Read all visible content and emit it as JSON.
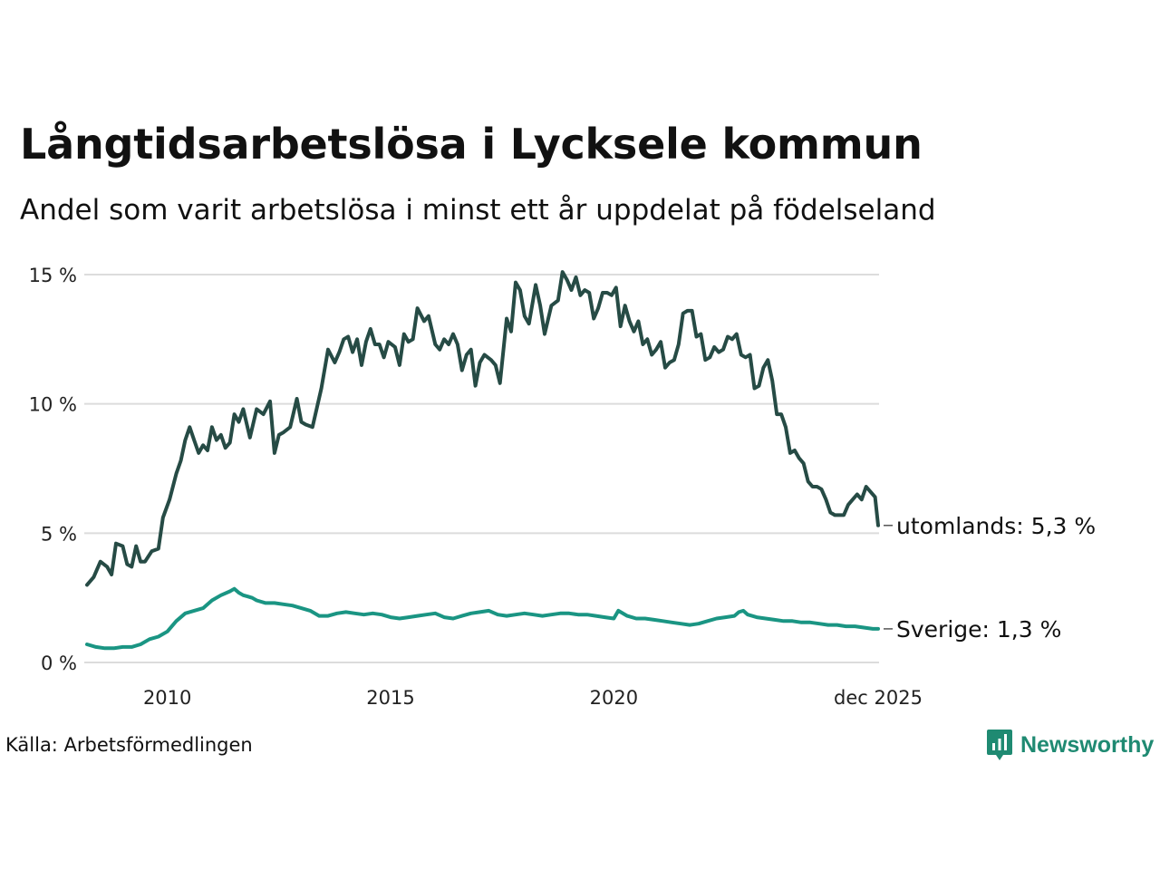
{
  "title": "Långtidsarbetslösa i Lycksele kommun",
  "subtitle": "Andel som varit arbetslösa i minst ett år uppdelat på födelseland",
  "source": "Källa: Arbetsförmedlingen",
  "brand": "Newsworthy",
  "colors": {
    "dark": "#264b45",
    "teal": "#1a9583",
    "grid": "#dcdcdc",
    "brand": "#1f8a72"
  },
  "chart_data": {
    "type": "line",
    "title": "Långtidsarbetslösa i Lycksele kommun",
    "xlabel": "",
    "ylabel": "",
    "xlim": [
      2008.2,
      2025.92
    ],
    "ylim": [
      0,
      15
    ],
    "y_ticks": [
      0,
      5,
      10,
      15
    ],
    "y_tick_labels": [
      "0 %",
      "5 %",
      "10 %",
      "15 %"
    ],
    "x_ticks": [
      2010,
      2015,
      2020,
      2025.92
    ],
    "x_tick_labels": [
      "2010",
      "2015",
      "2020",
      "dec 2025"
    ],
    "series": [
      {
        "name": "utomlands",
        "label": "utomlands: 5,3 %",
        "color": "#264b45",
        "points": [
          [
            2008.2,
            3.0
          ],
          [
            2008.35,
            3.3
          ],
          [
            2008.5,
            3.9
          ],
          [
            2008.65,
            3.7
          ],
          [
            2008.75,
            3.4
          ],
          [
            2008.85,
            4.6
          ],
          [
            2009.0,
            4.5
          ],
          [
            2009.1,
            3.8
          ],
          [
            2009.2,
            3.7
          ],
          [
            2009.3,
            4.5
          ],
          [
            2009.4,
            3.9
          ],
          [
            2009.5,
            3.9
          ],
          [
            2009.65,
            4.3
          ],
          [
            2009.8,
            4.4
          ],
          [
            2009.9,
            5.6
          ],
          [
            2010.05,
            6.3
          ],
          [
            2010.2,
            7.3
          ],
          [
            2010.3,
            7.8
          ],
          [
            2010.4,
            8.6
          ],
          [
            2010.5,
            9.1
          ],
          [
            2010.6,
            8.6
          ],
          [
            2010.7,
            8.1
          ],
          [
            2010.8,
            8.4
          ],
          [
            2010.9,
            8.2
          ],
          [
            2011.0,
            9.1
          ],
          [
            2011.1,
            8.6
          ],
          [
            2011.2,
            8.8
          ],
          [
            2011.3,
            8.3
          ],
          [
            2011.4,
            8.5
          ],
          [
            2011.5,
            9.6
          ],
          [
            2011.6,
            9.3
          ],
          [
            2011.7,
            9.8
          ],
          [
            2011.85,
            8.7
          ],
          [
            2012.0,
            9.8
          ],
          [
            2012.15,
            9.6
          ],
          [
            2012.3,
            10.1
          ],
          [
            2012.4,
            8.1
          ],
          [
            2012.5,
            8.8
          ],
          [
            2012.6,
            8.9
          ],
          [
            2012.75,
            9.1
          ],
          [
            2012.9,
            10.2
          ],
          [
            2013.0,
            9.3
          ],
          [
            2013.1,
            9.2
          ],
          [
            2013.25,
            9.1
          ],
          [
            2013.45,
            10.6
          ],
          [
            2013.6,
            12.1
          ],
          [
            2013.75,
            11.6
          ],
          [
            2013.85,
            12.0
          ],
          [
            2013.95,
            12.5
          ],
          [
            2014.05,
            12.6
          ],
          [
            2014.15,
            12.0
          ],
          [
            2014.25,
            12.5
          ],
          [
            2014.35,
            11.5
          ],
          [
            2014.45,
            12.4
          ],
          [
            2014.55,
            12.9
          ],
          [
            2014.65,
            12.3
          ],
          [
            2014.75,
            12.3
          ],
          [
            2014.85,
            11.8
          ],
          [
            2014.95,
            12.4
          ],
          [
            2015.1,
            12.2
          ],
          [
            2015.2,
            11.5
          ],
          [
            2015.3,
            12.7
          ],
          [
            2015.4,
            12.4
          ],
          [
            2015.5,
            12.5
          ],
          [
            2015.6,
            13.7
          ],
          [
            2015.75,
            13.2
          ],
          [
            2015.85,
            13.4
          ],
          [
            2016.0,
            12.3
          ],
          [
            2016.1,
            12.1
          ],
          [
            2016.2,
            12.5
          ],
          [
            2016.3,
            12.3
          ],
          [
            2016.4,
            12.7
          ],
          [
            2016.5,
            12.3
          ],
          [
            2016.6,
            11.3
          ],
          [
            2016.7,
            11.9
          ],
          [
            2016.8,
            12.1
          ],
          [
            2016.9,
            10.7
          ],
          [
            2017.0,
            11.6
          ],
          [
            2017.1,
            11.9
          ],
          [
            2017.25,
            11.7
          ],
          [
            2017.35,
            11.5
          ],
          [
            2017.45,
            10.8
          ],
          [
            2017.6,
            13.3
          ],
          [
            2017.7,
            12.8
          ],
          [
            2017.8,
            14.7
          ],
          [
            2017.9,
            14.4
          ],
          [
            2018.0,
            13.4
          ],
          [
            2018.1,
            13.1
          ],
          [
            2018.25,
            14.6
          ],
          [
            2018.35,
            13.8
          ],
          [
            2018.45,
            12.7
          ],
          [
            2018.6,
            13.8
          ],
          [
            2018.75,
            14.0
          ],
          [
            2018.85,
            15.1
          ],
          [
            2018.95,
            14.8
          ],
          [
            2019.05,
            14.4
          ],
          [
            2019.15,
            14.9
          ],
          [
            2019.25,
            14.2
          ],
          [
            2019.35,
            14.4
          ],
          [
            2019.45,
            14.3
          ],
          [
            2019.55,
            13.3
          ],
          [
            2019.65,
            13.7
          ],
          [
            2019.75,
            14.3
          ],
          [
            2019.85,
            14.3
          ],
          [
            2019.95,
            14.2
          ],
          [
            2020.05,
            14.5
          ],
          [
            2020.15,
            13.0
          ],
          [
            2020.25,
            13.8
          ],
          [
            2020.35,
            13.2
          ],
          [
            2020.45,
            12.8
          ],
          [
            2020.55,
            13.2
          ],
          [
            2020.65,
            12.3
          ],
          [
            2020.75,
            12.5
          ],
          [
            2020.85,
            11.9
          ],
          [
            2020.95,
            12.1
          ],
          [
            2021.05,
            12.4
          ],
          [
            2021.15,
            11.4
          ],
          [
            2021.25,
            11.6
          ],
          [
            2021.35,
            11.7
          ],
          [
            2021.45,
            12.3
          ],
          [
            2021.55,
            13.5
          ],
          [
            2021.65,
            13.6
          ],
          [
            2021.75,
            13.6
          ],
          [
            2021.85,
            12.6
          ],
          [
            2021.95,
            12.7
          ],
          [
            2022.05,
            11.7
          ],
          [
            2022.15,
            11.8
          ],
          [
            2022.25,
            12.2
          ],
          [
            2022.35,
            12.0
          ],
          [
            2022.45,
            12.1
          ],
          [
            2022.55,
            12.6
          ],
          [
            2022.65,
            12.5
          ],
          [
            2022.75,
            12.7
          ],
          [
            2022.85,
            11.9
          ],
          [
            2022.95,
            11.8
          ],
          [
            2023.05,
            11.9
          ],
          [
            2023.15,
            10.6
          ],
          [
            2023.25,
            10.7
          ],
          [
            2023.35,
            11.4
          ],
          [
            2023.45,
            11.7
          ],
          [
            2023.55,
            10.9
          ],
          [
            2023.65,
            9.6
          ],
          [
            2023.75,
            9.6
          ],
          [
            2023.85,
            9.1
          ],
          [
            2023.95,
            8.1
          ],
          [
            2024.05,
            8.2
          ],
          [
            2024.15,
            7.9
          ],
          [
            2024.25,
            7.7
          ],
          [
            2024.35,
            7.0
          ],
          [
            2024.45,
            6.8
          ],
          [
            2024.55,
            6.8
          ],
          [
            2024.65,
            6.7
          ],
          [
            2024.75,
            6.3
          ],
          [
            2024.85,
            5.8
          ],
          [
            2024.95,
            5.7
          ],
          [
            2025.05,
            5.7
          ],
          [
            2025.15,
            5.7
          ],
          [
            2025.25,
            6.1
          ],
          [
            2025.35,
            6.3
          ],
          [
            2025.45,
            6.5
          ],
          [
            2025.55,
            6.3
          ],
          [
            2025.65,
            6.8
          ],
          [
            2025.75,
            6.6
          ],
          [
            2025.85,
            6.4
          ],
          [
            2025.92,
            5.3
          ]
        ]
      },
      {
        "name": "Sverige",
        "label": "Sverige: 1,3 %",
        "color": "#1a9583",
        "points": [
          [
            2008.2,
            0.7
          ],
          [
            2008.4,
            0.6
          ],
          [
            2008.6,
            0.55
          ],
          [
            2008.8,
            0.55
          ],
          [
            2009.0,
            0.6
          ],
          [
            2009.2,
            0.6
          ],
          [
            2009.4,
            0.7
          ],
          [
            2009.6,
            0.9
          ],
          [
            2009.8,
            1.0
          ],
          [
            2010.0,
            1.2
          ],
          [
            2010.2,
            1.6
          ],
          [
            2010.4,
            1.9
          ],
          [
            2010.6,
            2.0
          ],
          [
            2010.8,
            2.1
          ],
          [
            2011.0,
            2.4
          ],
          [
            2011.2,
            2.6
          ],
          [
            2011.4,
            2.75
          ],
          [
            2011.5,
            2.85
          ],
          [
            2011.6,
            2.7
          ],
          [
            2011.7,
            2.6
          ],
          [
            2011.8,
            2.55
          ],
          [
            2011.9,
            2.5
          ],
          [
            2012.0,
            2.4
          ],
          [
            2012.2,
            2.3
          ],
          [
            2012.4,
            2.3
          ],
          [
            2012.6,
            2.25
          ],
          [
            2012.8,
            2.2
          ],
          [
            2013.0,
            2.1
          ],
          [
            2013.2,
            2.0
          ],
          [
            2013.4,
            1.8
          ],
          [
            2013.6,
            1.8
          ],
          [
            2013.8,
            1.9
          ],
          [
            2014.0,
            1.95
          ],
          [
            2014.2,
            1.9
          ],
          [
            2014.4,
            1.85
          ],
          [
            2014.6,
            1.9
          ],
          [
            2014.8,
            1.85
          ],
          [
            2015.0,
            1.75
          ],
          [
            2015.2,
            1.7
          ],
          [
            2015.4,
            1.75
          ],
          [
            2015.6,
            1.8
          ],
          [
            2015.8,
            1.85
          ],
          [
            2016.0,
            1.9
          ],
          [
            2016.2,
            1.75
          ],
          [
            2016.4,
            1.7
          ],
          [
            2016.6,
            1.8
          ],
          [
            2016.8,
            1.9
          ],
          [
            2017.0,
            1.95
          ],
          [
            2017.2,
            2.0
          ],
          [
            2017.4,
            1.85
          ],
          [
            2017.6,
            1.8
          ],
          [
            2017.8,
            1.85
          ],
          [
            2018.0,
            1.9
          ],
          [
            2018.2,
            1.85
          ],
          [
            2018.4,
            1.8
          ],
          [
            2018.6,
            1.85
          ],
          [
            2018.8,
            1.9
          ],
          [
            2019.0,
            1.9
          ],
          [
            2019.2,
            1.85
          ],
          [
            2019.4,
            1.85
          ],
          [
            2019.6,
            1.8
          ],
          [
            2019.8,
            1.75
          ],
          [
            2020.0,
            1.7
          ],
          [
            2020.1,
            2.0
          ],
          [
            2020.3,
            1.8
          ],
          [
            2020.5,
            1.7
          ],
          [
            2020.7,
            1.7
          ],
          [
            2020.9,
            1.65
          ],
          [
            2021.1,
            1.6
          ],
          [
            2021.3,
            1.55
          ],
          [
            2021.5,
            1.5
          ],
          [
            2021.7,
            1.45
          ],
          [
            2021.9,
            1.5
          ],
          [
            2022.1,
            1.6
          ],
          [
            2022.3,
            1.7
          ],
          [
            2022.5,
            1.75
          ],
          [
            2022.7,
            1.8
          ],
          [
            2022.8,
            1.95
          ],
          [
            2022.9,
            2.0
          ],
          [
            2023.0,
            1.85
          ],
          [
            2023.2,
            1.75
          ],
          [
            2023.4,
            1.7
          ],
          [
            2023.6,
            1.65
          ],
          [
            2023.8,
            1.6
          ],
          [
            2024.0,
            1.6
          ],
          [
            2024.2,
            1.55
          ],
          [
            2024.4,
            1.55
          ],
          [
            2024.6,
            1.5
          ],
          [
            2024.8,
            1.45
          ],
          [
            2025.0,
            1.45
          ],
          [
            2025.2,
            1.4
          ],
          [
            2025.4,
            1.4
          ],
          [
            2025.6,
            1.35
          ],
          [
            2025.8,
            1.3
          ],
          [
            2025.92,
            1.3
          ]
        ]
      }
    ]
  }
}
